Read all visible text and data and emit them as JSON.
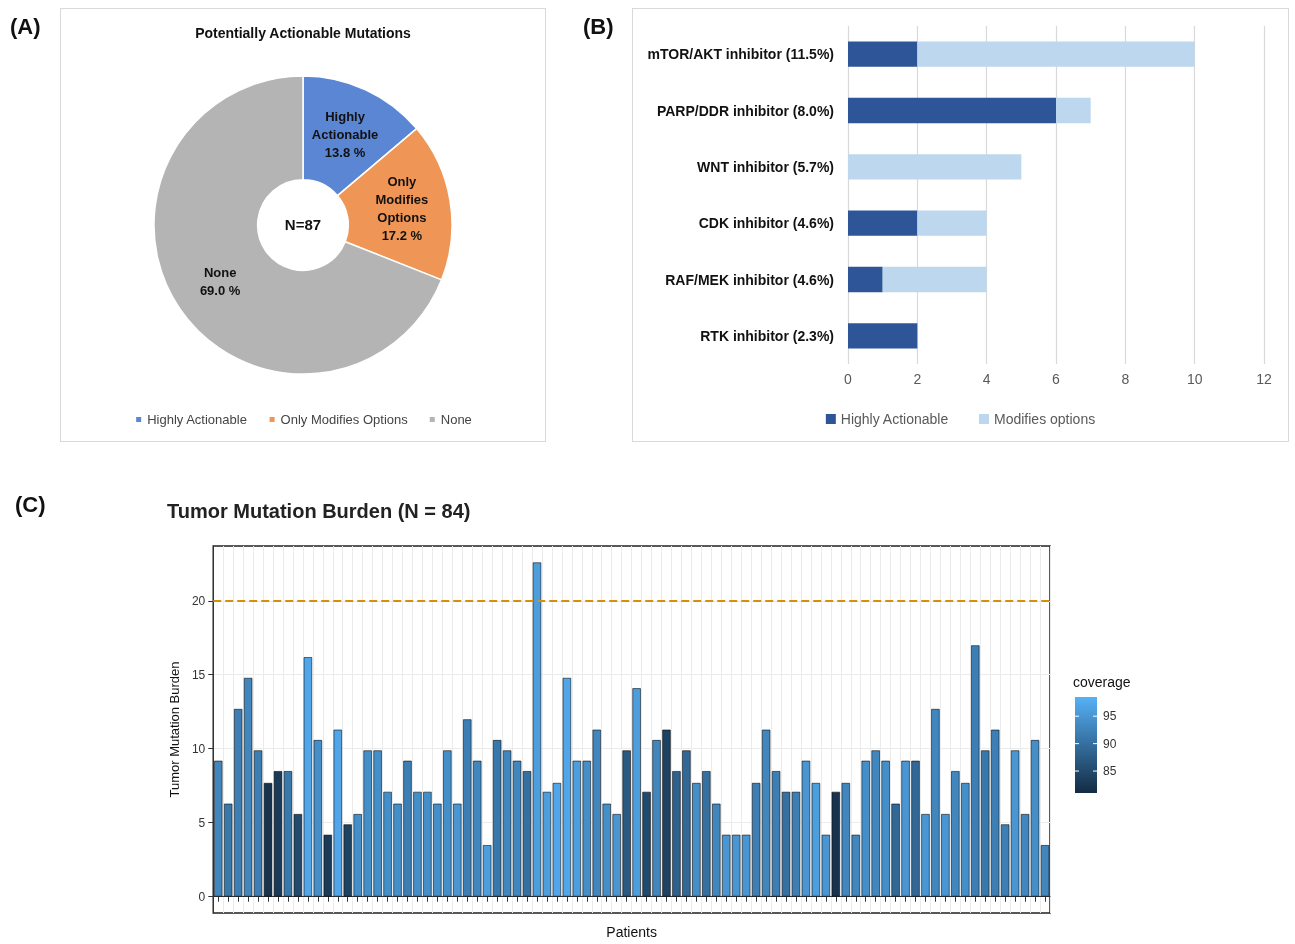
{
  "chart_data": [
    {
      "type": "donut",
      "title": "Potentially Actionable Mutations",
      "categories": [
        "Highly Actionable",
        "Only Modifies Options",
        "None"
      ],
      "values": [
        13.8,
        17.2,
        69.0
      ],
      "colors": [
        "#5b86d3",
        "#ef9555",
        "#b4b4b4"
      ],
      "value_labels": [
        "13.8 %",
        "17.2 %",
        "69.0 %"
      ],
      "legend": "bottom",
      "annotations": [
        "(A)",
        "N=87"
      ]
    },
    {
      "type": "bar",
      "orientation": "horizontal",
      "stacked": true,
      "categories": [
        "mTOR/AKT inhibitor (11.5%)",
        "PARP/DDR inhibitor (8.0%)",
        "WNT inhibitor (5.7%)",
        "CDK inhibitor (4.6%)",
        "RAF/MEK inhibitor (4.6%)",
        "RTK inhibitor (2.3%)"
      ],
      "series": [
        {
          "name": "Highly Actionable",
          "color": "#2e5597",
          "values": [
            2,
            6,
            0,
            2,
            1,
            2
          ]
        },
        {
          "name": "Modifies options",
          "color": "#bdd7ee",
          "values": [
            8,
            1,
            5,
            2,
            3,
            0
          ]
        }
      ],
      "xlim": [
        0,
        12
      ],
      "xticks": [
        0,
        2,
        4,
        6,
        8,
        10,
        12
      ],
      "grid": "x",
      "legend": "bottom",
      "annotations": [
        "(B)"
      ]
    },
    {
      "type": "bar",
      "title": "Tumor Mutation Burden (N = 84)",
      "xlabel": "Patients",
      "ylabel": "Tumor Mutation Burden",
      "categories": [
        null,
        null,
        null,
        null,
        null,
        null,
        null,
        null,
        null,
        null,
        null,
        null,
        null,
        null,
        null,
        null,
        null,
        null,
        null,
        null,
        null,
        null,
        null,
        null,
        null,
        null,
        null,
        null,
        null,
        null,
        null,
        null,
        null,
        null,
        null,
        null,
        null,
        null,
        null,
        null,
        null,
        null,
        null,
        null,
        null,
        null,
        null,
        null,
        null,
        null,
        null,
        null,
        null,
        null,
        null,
        null,
        null,
        null,
        null,
        null,
        null,
        null,
        null,
        null,
        null,
        null,
        null,
        null,
        null,
        null,
        null,
        null,
        null,
        null,
        null,
        null,
        null,
        null,
        null,
        null,
        null,
        null,
        null,
        null
      ],
      "values": [
        9.2,
        6.3,
        12.7,
        14.8,
        9.9,
        7.7,
        8.5,
        8.5,
        5.6,
        16.2,
        10.6,
        4.2,
        11.3,
        4.9,
        5.6,
        9.9,
        9.9,
        7.1,
        6.3,
        9.2,
        7.1,
        7.1,
        6.3,
        9.9,
        6.3,
        12.0,
        9.2,
        3.5,
        10.6,
        9.9,
        9.2,
        8.5,
        22.6,
        7.1,
        7.7,
        14.8,
        9.2,
        9.2,
        11.3,
        6.3,
        5.6,
        9.9,
        14.1,
        7.1,
        10.6,
        11.3,
        8.5,
        9.9,
        7.7,
        8.5,
        6.3,
        4.2,
        4.2,
        4.2,
        7.7,
        11.3,
        8.5,
        7.1,
        7.1,
        9.2,
        7.7,
        4.2,
        7.1,
        7.7,
        4.2,
        9.2,
        9.9,
        9.2,
        6.3,
        9.2,
        9.2,
        5.6,
        12.7,
        5.6,
        8.5,
        7.7,
        17.0,
        9.9,
        11.3,
        4.9,
        9.9,
        5.6,
        10.6,
        3.5
      ],
      "cvalues": [
        93,
        91,
        92,
        93,
        92,
        82,
        83,
        91,
        85,
        97,
        94,
        83,
        97,
        84,
        94,
        94,
        94,
        94,
        94,
        92,
        94,
        94,
        94,
        94,
        95,
        92,
        93,
        96,
        91,
        93,
        93,
        90,
        96,
        96,
        97,
        97,
        96,
        94,
        93,
        94,
        95,
        87,
        96,
        85,
        93,
        84,
        88,
        89,
        94,
        90,
        93,
        95,
        95,
        95,
        92,
        93,
        92,
        90,
        92,
        95,
        96,
        95,
        82,
        93,
        93,
        94,
        93,
        94,
        89,
        95,
        89,
        95,
        93,
        95,
        93,
        94,
        92,
        91,
        92,
        92,
        95,
        93,
        94,
        93
      ],
      "clabel": "coverage",
      "clim": [
        81,
        98.5
      ],
      "cticks": [
        85,
        90,
        95
      ],
      "ylim": [
        -1.1,
        23.7
      ],
      "yticks": [
        0,
        5,
        10,
        15,
        20
      ],
      "grid": true,
      "tick_labels": "y",
      "ref_lines": [
        {
          "axis": "y",
          "value": 20,
          "label": null,
          "color": "#d4900a",
          "line_style": "dashed"
        }
      ],
      "annotations": [
        "(C)"
      ]
    }
  ]
}
